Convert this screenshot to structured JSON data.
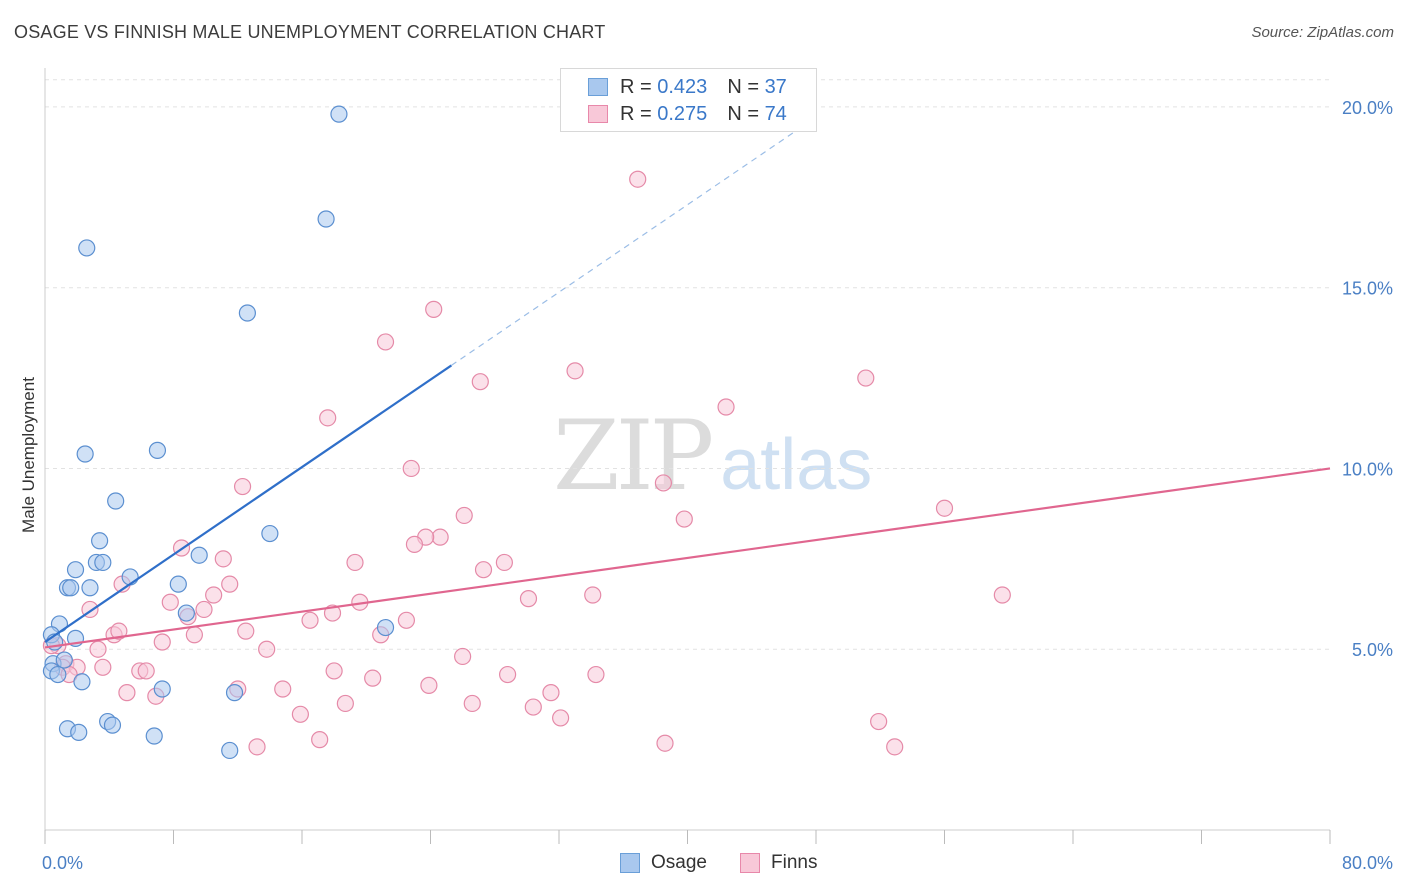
{
  "title": "OSAGE VS FINNISH MALE UNEMPLOYMENT CORRELATION CHART",
  "source": "Source: ZipAtlas.com",
  "watermark": {
    "zip": "ZIP",
    "atlas": "atlas"
  },
  "legend": {
    "rows": [
      {
        "r_label": "R =",
        "r_value": "0.423",
        "n_label": "N =",
        "n_value": "37",
        "color": "#a9c8ee",
        "stroke": "#6a9fd8"
      },
      {
        "r_label": "R =",
        "r_value": "0.275",
        "n_label": "N =",
        "n_value": "74",
        "color": "#f8c8d8",
        "stroke": "#e888aa"
      }
    ]
  },
  "bottom_legend": [
    {
      "label": "Osage",
      "color": "#a9c8ee",
      "stroke": "#6a9fd8"
    },
    {
      "label": "Finns",
      "color": "#f8c8d8",
      "stroke": "#e888aa"
    }
  ],
  "chart_data": {
    "type": "scatter",
    "title": "OSAGE VS FINNISH MALE UNEMPLOYMENT CORRELATION CHART",
    "xlabel": "",
    "ylabel": "Male Unemployment",
    "xlim": [
      0,
      80
    ],
    "ylim": [
      0,
      20.8
    ],
    "x_tick_labels": [
      "0.0%",
      "80.0%"
    ],
    "y_ticks": [
      5,
      10,
      15,
      20
    ],
    "y_tick_labels": [
      "5.0%",
      "10.0%",
      "15.0%",
      "20.0%"
    ],
    "grid": true,
    "legend_position": "top-center",
    "colors": {
      "osage_fill": "#a9c8ee",
      "osage_stroke": "#5b8fd0",
      "osage_line": "#2f6fc9",
      "finns_fill": "#f8c8d8",
      "finns_stroke": "#e58aa8",
      "finns_line": "#e0668f"
    },
    "series": [
      {
        "name": "Osage",
        "trend": {
          "x0": 0,
          "y0": 5.2,
          "x1": 25.3,
          "y1": 12.85,
          "dashed_to_x": 48.0
        },
        "points": [
          [
            18.3,
            19.8
          ],
          [
            17.5,
            16.9
          ],
          [
            2.6,
            16.1
          ],
          [
            12.6,
            14.3
          ],
          [
            7.0,
            10.5
          ],
          [
            2.5,
            10.4
          ],
          [
            4.4,
            9.1
          ],
          [
            14.0,
            8.2
          ],
          [
            3.4,
            8.0
          ],
          [
            3.2,
            7.4
          ],
          [
            3.6,
            7.4
          ],
          [
            9.6,
            7.6
          ],
          [
            1.9,
            7.2
          ],
          [
            5.3,
            7.0
          ],
          [
            1.4,
            6.7
          ],
          [
            1.6,
            6.7
          ],
          [
            2.8,
            6.7
          ],
          [
            8.3,
            6.8
          ],
          [
            8.8,
            6.0
          ],
          [
            0.9,
            5.7
          ],
          [
            0.4,
            5.4
          ],
          [
            1.9,
            5.3
          ],
          [
            0.6,
            5.2
          ],
          [
            21.2,
            5.6
          ],
          [
            0.5,
            4.6
          ],
          [
            1.2,
            4.7
          ],
          [
            0.4,
            4.4
          ],
          [
            0.8,
            4.3
          ],
          [
            2.3,
            4.1
          ],
          [
            7.3,
            3.9
          ],
          [
            11.8,
            3.8
          ],
          [
            1.4,
            2.8
          ],
          [
            2.1,
            2.7
          ],
          [
            3.9,
            3.0
          ],
          [
            4.2,
            2.9
          ],
          [
            6.8,
            2.6
          ],
          [
            11.5,
            2.2
          ]
        ]
      },
      {
        "name": "Finns",
        "trend": {
          "x0": 0,
          "y0": 5.05,
          "x1": 80,
          "y1": 10.0
        },
        "points": [
          [
            36.9,
            18.0
          ],
          [
            24.2,
            14.4
          ],
          [
            21.2,
            13.5
          ],
          [
            33.0,
            12.7
          ],
          [
            51.1,
            12.5
          ],
          [
            27.1,
            12.4
          ],
          [
            42.4,
            11.7
          ],
          [
            17.6,
            11.4
          ],
          [
            22.8,
            10.0
          ],
          [
            38.5,
            9.6
          ],
          [
            12.3,
            9.5
          ],
          [
            56.0,
            8.9
          ],
          [
            39.8,
            8.6
          ],
          [
            26.1,
            8.7
          ],
          [
            24.6,
            8.1
          ],
          [
            23.7,
            8.1
          ],
          [
            23.0,
            7.9
          ],
          [
            8.5,
            7.8
          ],
          [
            11.1,
            7.5
          ],
          [
            19.3,
            7.4
          ],
          [
            28.6,
            7.4
          ],
          [
            27.3,
            7.2
          ],
          [
            4.8,
            6.8
          ],
          [
            11.5,
            6.8
          ],
          [
            10.5,
            6.5
          ],
          [
            34.1,
            6.5
          ],
          [
            59.6,
            6.5
          ],
          [
            30.1,
            6.4
          ],
          [
            7.8,
            6.3
          ],
          [
            19.6,
            6.3
          ],
          [
            2.8,
            6.1
          ],
          [
            9.9,
            6.1
          ],
          [
            17.9,
            6.0
          ],
          [
            8.9,
            5.9
          ],
          [
            16.5,
            5.8
          ],
          [
            22.5,
            5.8
          ],
          [
            12.5,
            5.5
          ],
          [
            4.3,
            5.4
          ],
          [
            4.6,
            5.5
          ],
          [
            9.3,
            5.4
          ],
          [
            20.9,
            5.4
          ],
          [
            0.8,
            5.1
          ],
          [
            7.3,
            5.2
          ],
          [
            0.4,
            5.1
          ],
          [
            3.3,
            5.0
          ],
          [
            13.8,
            5.0
          ],
          [
            1.3,
            4.6
          ],
          [
            26.0,
            4.8
          ],
          [
            1.1,
            4.5
          ],
          [
            2.0,
            4.5
          ],
          [
            3.6,
            4.5
          ],
          [
            5.9,
            4.4
          ],
          [
            18.0,
            4.4
          ],
          [
            1.5,
            4.3
          ],
          [
            6.3,
            4.4
          ],
          [
            20.4,
            4.2
          ],
          [
            28.8,
            4.3
          ],
          [
            34.3,
            4.3
          ],
          [
            23.9,
            4.0
          ],
          [
            14.8,
            3.9
          ],
          [
            12.0,
            3.9
          ],
          [
            5.1,
            3.8
          ],
          [
            31.5,
            3.8
          ],
          [
            6.9,
            3.7
          ],
          [
            18.7,
            3.5
          ],
          [
            26.6,
            3.5
          ],
          [
            30.4,
            3.4
          ],
          [
            15.9,
            3.2
          ],
          [
            32.1,
            3.1
          ],
          [
            51.9,
            3.0
          ],
          [
            17.1,
            2.5
          ],
          [
            38.6,
            2.4
          ],
          [
            13.2,
            2.3
          ],
          [
            52.9,
            2.3
          ]
        ]
      }
    ]
  }
}
